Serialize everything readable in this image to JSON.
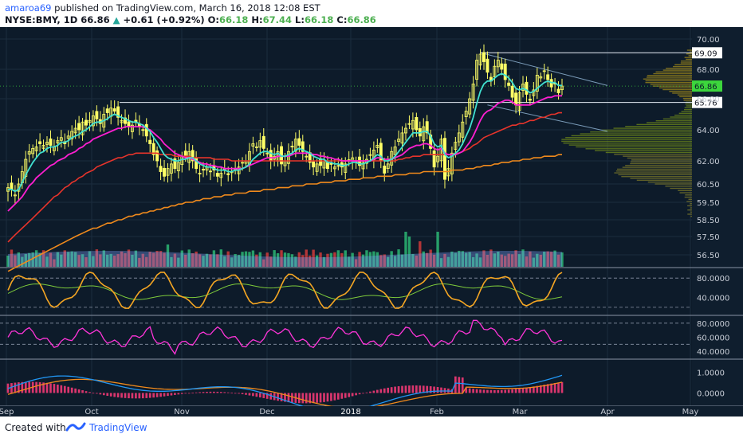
{
  "header": {
    "author": "amaroa69",
    "published_text": "published on TradingView.com, March 16, 2018 12:08 EST",
    "symbol": "NYSE:BMY, 1D",
    "last": "66.86",
    "change": "+0.61 (+0.92%)",
    "o_label": "O:",
    "o": "66.18",
    "h_label": "H:",
    "h": "67.44",
    "l_label": "L:",
    "l": "66.18",
    "c_label": "C:",
    "c": "66.86"
  },
  "footer": {
    "created_with": "Created with",
    "brand": "TradingView"
  },
  "colors": {
    "background": "#0d1b2a",
    "up_candle": "#ffff66",
    "down_candle": "#ffff66",
    "ema_fast": "#40e0d0",
    "ema_mid": "#ff1fd1",
    "sma_50": "#e8342b",
    "sma_200": "#f08a1c",
    "volume_up": "#2bb673",
    "volume_down": "#d03a3a",
    "stoch_k": "#f5a623",
    "stoch_d": "#7ecb3b",
    "rsi": "#ff35d9",
    "macd": "#2196f3",
    "signal": "#f08a1c",
    "histogram": "#ff3b7a",
    "last_price_badge": "#3cd63c"
  },
  "chart_data": [
    {
      "type": "candlestick",
      "symbol": "NYSE:BMY",
      "interval": "1D",
      "x_labels": [
        "Sep",
        "Oct",
        "Nov",
        "Dec",
        "2018",
        "Feb",
        "Mar",
        "Apr",
        "May"
      ],
      "y_ticks": [
        70.0,
        68.0,
        66.0,
        64.0,
        62.0,
        60.5,
        59.5,
        58.5,
        57.5,
        56.5
      ],
      "y_tick_labels": [
        "70.00",
        "68.00",
        "66.00",
        "64.00",
        "62.00",
        "60.50",
        "59.50",
        "58.50",
        "57.50",
        "56.50"
      ],
      "horizontal_levels": [
        69.09,
        65.76
      ],
      "horizontal_level_labels": [
        "69.09",
        "65.76"
      ],
      "last_price": 66.86,
      "last_price_label": "66.86",
      "close_series": [
        60.3,
        60.2,
        59.9,
        60.5,
        61.3,
        62.1,
        62.6,
        62.8,
        62.9,
        63.1,
        63.0,
        63.2,
        63.0,
        62.9,
        63.3,
        63.5,
        63.1,
        63.6,
        63.9,
        64.1,
        64.0,
        64.5,
        64.3,
        64.6,
        64.9,
        64.7,
        64.4,
        65.0,
        65.1,
        65.4,
        65.2,
        64.8,
        64.6,
        64.4,
        64.2,
        64.3,
        64.5,
        64.2,
        64.0,
        63.6,
        63.1,
        62.4,
        62.0,
        61.3,
        61.0,
        61.5,
        61.8,
        61.5,
        61.9,
        62.3,
        62.2,
        62.6,
        62.0,
        61.5,
        61.2,
        61.4,
        61.6,
        61.3,
        61.4,
        61.0,
        61.2,
        61.5,
        61.1,
        61.3,
        61.5,
        61.6,
        61.9,
        62.0,
        62.6,
        63.1,
        62.9,
        63.3,
        62.8,
        62.5,
        62.0,
        62.3,
        62.6,
        61.8,
        62.0,
        62.6,
        62.9,
        63.4,
        63.0,
        62.6,
        62.3,
        61.9,
        61.6,
        61.8,
        61.7,
        62.0,
        61.5,
        61.8,
        61.6,
        61.7,
        61.6,
        61.8,
        62.0,
        62.2,
        61.9,
        61.7,
        61.9,
        62.1,
        62.4,
        62.7,
        63.0,
        62.0,
        61.2,
        61.8,
        62.6,
        62.9,
        63.4,
        63.8,
        64.1,
        64.4,
        64.6,
        64.0,
        63.6,
        64.2,
        63.8,
        62.8,
        61.6,
        62.3,
        63.4,
        60.8,
        61.5,
        62.5,
        63.2,
        63.8,
        64.5,
        65.2,
        66.0,
        67.0,
        68.6,
        69.0,
        68.5,
        67.8,
        67.2,
        68.2,
        68.6,
        68.0,
        67.3,
        66.9,
        66.1,
        65.6,
        66.4,
        67.0,
        66.3,
        65.9,
        66.6,
        67.6,
        67.5,
        67.9,
        67.3,
        66.8,
        67.0,
        66.4,
        66.86
      ],
      "ema_fast_series": [
        60.2,
        60.2,
        60.1,
        60.2,
        60.6,
        61.1,
        61.5,
        61.9,
        62.2,
        62.5,
        62.6,
        62.8,
        62.9,
        62.9,
        63.0,
        63.2,
        63.2,
        63.3,
        63.5,
        63.6,
        63.7,
        63.9,
        64.0,
        64.2,
        64.4,
        64.5,
        64.5,
        64.6,
        64.7,
        64.9,
        65.0,
        64.9,
        64.8,
        64.7,
        64.6,
        64.5,
        64.5,
        64.4,
        64.3,
        64.1,
        63.9,
        63.5,
        63.2,
        62.8,
        62.4,
        62.2,
        62.1,
        62.0,
        62.0,
        62.1,
        62.1,
        62.2,
        62.2,
        62.0,
        61.8,
        61.7,
        61.6,
        61.6,
        61.5,
        61.4,
        61.4,
        61.4,
        61.3,
        61.3,
        61.4,
        61.4,
        61.5,
        61.6,
        61.8,
        62.1,
        62.3,
        62.5,
        62.6,
        62.6,
        62.5,
        62.4,
        62.5,
        62.3,
        62.3,
        62.4,
        62.5,
        62.7,
        62.8,
        62.7,
        62.6,
        62.5,
        62.3,
        62.2,
        62.1,
        62.1,
        61.9,
        61.9,
        61.8,
        61.8,
        61.7,
        61.7,
        61.8,
        61.9,
        61.9,
        61.8,
        61.8,
        61.9,
        62.0,
        62.2,
        62.4,
        62.3,
        62.0,
        62.0,
        62.1,
        62.3,
        62.6,
        62.9,
        63.2,
        63.5,
        63.8,
        63.8,
        63.8,
        63.9,
        63.9,
        63.6,
        63.1,
        62.9,
        63.0,
        62.4,
        62.2,
        62.3,
        62.5,
        62.7,
        63.1,
        63.6,
        64.1,
        64.8,
        65.7,
        66.5,
        67.0,
        67.2,
        67.2,
        67.4,
        67.6,
        67.7,
        67.6,
        67.4,
        67.1,
        66.7,
        66.6,
        66.7,
        66.6,
        66.4,
        66.5,
        66.7,
        66.9,
        67.1,
        67.2,
        67.1,
        67.1,
        66.9,
        66.9
      ],
      "ema_mid_series": [
        59.0,
        59.2,
        59.4,
        59.6,
        59.8,
        60.1,
        60.4,
        60.6,
        60.9,
        61.1,
        61.3,
        61.5,
        61.7,
        61.8,
        62.0,
        62.1,
        62.2,
        62.4,
        62.5,
        62.6,
        62.8,
        62.9,
        63.1,
        63.2,
        63.4,
        63.5,
        63.6,
        63.7,
        63.8,
        63.9,
        64.0,
        64.1,
        64.1,
        64.2,
        64.2,
        64.2,
        64.2,
        64.2,
        64.2,
        64.1,
        64.0,
        63.8,
        63.6,
        63.4,
        63.1,
        62.9,
        62.7,
        62.5,
        62.4,
        62.3,
        62.2,
        62.2,
        62.1,
        62.0,
        61.9,
        61.8,
        61.8,
        61.7,
        61.7,
        61.6,
        61.6,
        61.5,
        61.5,
        61.5,
        61.5,
        61.5,
        61.5,
        61.6,
        61.7,
        61.8,
        61.9,
        62.0,
        62.1,
        62.2,
        62.2,
        62.2,
        62.3,
        62.3,
        62.3,
        62.3,
        62.4,
        62.5,
        62.5,
        62.5,
        62.5,
        62.5,
        62.4,
        62.4,
        62.3,
        62.3,
        62.2,
        62.2,
        62.1,
        62.1,
        62.0,
        62.0,
        62.0,
        62.0,
        62.0,
        62.0,
        62.0,
        62.0,
        62.0,
        62.1,
        62.2,
        62.2,
        62.1,
        62.1,
        62.1,
        62.2,
        62.3,
        62.4,
        62.6,
        62.8,
        62.9,
        63.0,
        63.0,
        63.1,
        63.1,
        63.0,
        62.8,
        62.7,
        62.8,
        62.5,
        62.4,
        62.4,
        62.4,
        62.5,
        62.6,
        62.9,
        63.2,
        63.6,
        64.1,
        64.6,
        65.0,
        65.2,
        65.3,
        65.5,
        65.7,
        65.8,
        65.9,
        65.9,
        65.8,
        65.6,
        65.6,
        65.6,
        65.6,
        65.6,
        65.7,
        65.8,
        65.9,
        66.0,
        66.1,
        66.1,
        66.2,
        66.2,
        66.2
      ],
      "sma50_series": [
        57.2,
        57.4,
        57.6,
        57.8,
        58.0,
        58.2,
        58.4,
        58.6,
        58.8,
        59.0,
        59.2,
        59.4,
        59.6,
        59.8,
        59.9,
        60.1,
        60.3,
        60.4,
        60.6,
        60.7,
        60.9,
        61.0,
        61.2,
        61.3,
        61.4,
        61.6,
        61.7,
        61.8,
        61.9,
        62.0,
        62.1,
        62.2,
        62.2,
        62.3,
        62.4,
        62.4,
        62.5,
        62.5,
        62.5,
        62.5,
        62.5,
        62.5,
        62.5,
        62.4,
        62.4,
        62.4,
        62.4,
        62.3,
        62.3,
        62.3,
        62.3,
        62.3,
        62.2,
        62.2,
        62.2,
        62.2,
        62.2,
        62.2,
        62.1,
        62.1,
        62.1,
        62.1,
        62.1,
        62.0,
        62.0,
        62.0,
        62.0,
        62.0,
        62.0,
        62.0,
        62.0,
        62.0,
        62.0,
        62.0,
        62.0,
        62.0,
        62.0,
        62.0,
        62.0,
        62.0,
        62.0,
        62.0,
        62.0,
        62.0,
        62.0,
        62.0,
        62.0,
        62.0,
        62.0,
        62.0,
        62.0,
        62.0,
        62.0,
        62.0,
        62.0,
        62.0,
        62.0,
        62.0,
        62.0,
        62.0,
        62.0,
        62.0,
        62.0,
        62.0,
        62.0,
        62.0,
        62.0,
        62.0,
        62.0,
        62.0,
        62.1,
        62.1,
        62.2,
        62.2,
        62.3,
        62.3,
        62.3,
        62.4,
        62.4,
        62.4,
        62.4,
        62.4,
        62.4,
        62.4,
        62.4,
        62.4,
        62.5,
        62.5,
        62.6,
        62.7,
        62.8,
        63.0,
        63.1,
        63.3,
        63.5,
        63.6,
        63.7,
        63.8,
        63.9,
        64.0,
        64.1,
        64.2,
        64.3,
        64.3,
        64.4,
        64.4,
        64.5,
        64.6,
        64.6,
        64.7,
        64.8,
        64.8,
        64.9,
        65.0,
        65.0,
        65.1,
        65.1
      ],
      "sma200_series": [
        55.6,
        55.7,
        55.8,
        55.9,
        56.0,
        56.1,
        56.2,
        56.3,
        56.4,
        56.5,
        56.6,
        56.7,
        56.8,
        56.9,
        57.0,
        57.1,
        57.2,
        57.3,
        57.4,
        57.5,
        57.6,
        57.7,
        57.8,
        57.9,
        58.0,
        58.0,
        58.1,
        58.2,
        58.3,
        58.3,
        58.4,
        58.5,
        58.5,
        58.6,
        58.7,
        58.7,
        58.8,
        58.8,
        58.9,
        58.9,
        59.0,
        59.0,
        59.1,
        59.1,
        59.2,
        59.2,
        59.3,
        59.3,
        59.4,
        59.4,
        59.5,
        59.5,
        59.5,
        59.6,
        59.6,
        59.7,
        59.7,
        59.7,
        59.8,
        59.8,
        59.8,
        59.9,
        59.9,
        59.9,
        60.0,
        60.0,
        60.0,
        60.0,
        60.1,
        60.1,
        60.1,
        60.1,
        60.2,
        60.2,
        60.2,
        60.2,
        60.3,
        60.3,
        60.3,
        60.3,
        60.4,
        60.4,
        60.4,
        60.4,
        60.5,
        60.5,
        60.5,
        60.5,
        60.6,
        60.6,
        60.6,
        60.6,
        60.7,
        60.7,
        60.7,
        60.7,
        60.8,
        60.8,
        60.8,
        60.8,
        60.9,
        60.9,
        60.9,
        60.9,
        61.0,
        61.0,
        61.0,
        61.0,
        61.0,
        61.1,
        61.1,
        61.1,
        61.1,
        61.2,
        61.2,
        61.2,
        61.2,
        61.3,
        61.3,
        61.3,
        61.3,
        61.3,
        61.3,
        61.3,
        61.3,
        61.4,
        61.4,
        61.4,
        61.4,
        61.5,
        61.5,
        61.5,
        61.6,
        61.6,
        61.7,
        61.7,
        61.7,
        61.8,
        61.8,
        61.9,
        61.9,
        61.9,
        62.0,
        62.0,
        62.0,
        62.1,
        62.1,
        62.1,
        62.2,
        62.2,
        62.2,
        62.3,
        62.3,
        62.3,
        62.3,
        62.4,
        62.4
      ]
    },
    {
      "type": "line",
      "indicator": "stochastic",
      "y_ticks": [
        80.0,
        40.0
      ],
      "y_tick_labels": [
        "80.0000",
        "40.0000"
      ],
      "dashed_levels": [
        80,
        20
      ]
    },
    {
      "type": "line",
      "indicator": "rsi",
      "y_ticks": [
        80.0,
        60.0,
        40.0
      ],
      "y_tick_labels": [
        "80.0000",
        "60.0000",
        "40.0000"
      ],
      "dashed_levels": [
        80,
        50
      ]
    },
    {
      "type": "line",
      "indicator": "macd",
      "y_ticks": [
        1.0,
        0.0
      ],
      "y_tick_labels": [
        "1.0000",
        "0.0000"
      ]
    }
  ]
}
